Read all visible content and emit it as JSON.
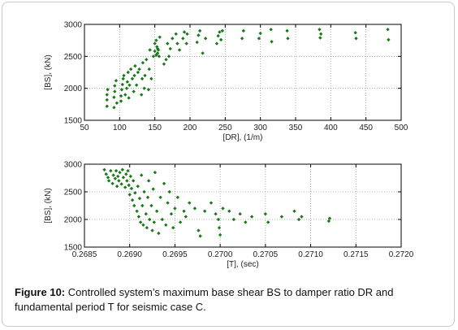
{
  "caption": {
    "label": "Figure 10:",
    "text": " Controlled system’s maximum base shear BS to damper ratio DR and fundamental period T for seismic case C."
  },
  "colors": {
    "marker": "#1a7a1a",
    "axis": "#000000",
    "grid": "#9a9a9a"
  },
  "chart_data": [
    {
      "type": "scatter",
      "xlabel": "[DR], (1/m)",
      "ylabel": "[BS], (kN)",
      "xlim": [
        50,
        500
      ],
      "ylim": [
        1500,
        3000
      ],
      "xticks": [
        "50",
        "100",
        "150",
        "200",
        "250",
        "300",
        "350",
        "400",
        "450",
        "500"
      ],
      "yticks": [
        "1500",
        "2000",
        "2500",
        "3000"
      ],
      "grid": true,
      "points": [
        [
          82,
          1720
        ],
        [
          82,
          1820
        ],
        [
          82,
          1900
        ],
        [
          83,
          1980
        ],
        [
          92,
          1700
        ],
        [
          92,
          1860
        ],
        [
          93,
          1950
        ],
        [
          93,
          2040
        ],
        [
          95,
          2120
        ],
        [
          96,
          1770
        ],
        [
          102,
          1800
        ],
        [
          102,
          1880
        ],
        [
          103,
          1980
        ],
        [
          104,
          2060
        ],
        [
          105,
          2150
        ],
        [
          106,
          2200
        ],
        [
          108,
          1900
        ],
        [
          110,
          2000
        ],
        [
          111,
          2100
        ],
        [
          112,
          2250
        ],
        [
          113,
          1850
        ],
        [
          114,
          2050
        ],
        [
          116,
          2300
        ],
        [
          118,
          2150
        ],
        [
          120,
          1950
        ],
        [
          121,
          2200
        ],
        [
          122,
          2350
        ],
        [
          124,
          2050
        ],
        [
          126,
          2250
        ],
        [
          128,
          2300
        ],
        [
          131,
          1900
        ],
        [
          132,
          2150
        ],
        [
          133,
          2400
        ],
        [
          135,
          2000
        ],
        [
          136,
          2200
        ],
        [
          138,
          2450
        ],
        [
          141,
          1980
        ],
        [
          142,
          2300
        ],
        [
          143,
          2600
        ],
        [
          145,
          2150
        ],
        [
          148,
          2500
        ],
        [
          150,
          2700
        ],
        [
          152,
          2750
        ],
        [
          153,
          2650
        ],
        [
          154,
          2550
        ],
        [
          155,
          2600
        ],
        [
          156,
          2500
        ],
        [
          157,
          2800
        ],
        [
          150,
          2580
        ],
        [
          152,
          2520
        ],
        [
          154,
          2620
        ],
        [
          163,
          2380
        ],
        [
          166,
          2450
        ],
        [
          170,
          2500
        ],
        [
          168,
          2700
        ],
        [
          172,
          2620
        ],
        [
          175,
          2780
        ],
        [
          180,
          2850
        ],
        [
          182,
          2700
        ],
        [
          185,
          2600
        ],
        [
          190,
          2780
        ],
        [
          192,
          2880
        ],
        [
          195,
          2700
        ],
        [
          196,
          2850
        ],
        [
          210,
          2720
        ],
        [
          212,
          2830
        ],
        [
          214,
          2900
        ],
        [
          218,
          2550
        ],
        [
          222,
          2780
        ],
        [
          238,
          2700
        ],
        [
          240,
          2820
        ],
        [
          242,
          2880
        ],
        [
          244,
          2760
        ],
        [
          246,
          2900
        ],
        [
          274,
          2780
        ],
        [
          276,
          2900
        ],
        [
          298,
          2780
        ],
        [
          300,
          2860
        ],
        [
          315,
          2920
        ],
        [
          316,
          2730
        ],
        [
          338,
          2900
        ],
        [
          339,
          2780
        ],
        [
          384,
          2920
        ],
        [
          385,
          2790
        ],
        [
          386,
          2850
        ],
        [
          435,
          2870
        ],
        [
          436,
          2780
        ],
        [
          481,
          2920
        ],
        [
          482,
          2760
        ]
      ]
    },
    {
      "type": "scatter",
      "xlabel": "[T], (sec)",
      "ylabel": "[BS], (kN)",
      "xlim": [
        0.2685,
        0.272
      ],
      "ylim": [
        1500,
        3000
      ],
      "xticks": [
        "0.2685",
        "0.2690",
        "0.2695",
        "0.2700",
        "0.2705",
        "0.2710",
        "0.2715",
        "0.2720"
      ],
      "yticks": [
        "1500",
        "2000",
        "2500",
        "3000"
      ],
      "grid": true,
      "points": [
        [
          0.26872,
          2900
        ],
        [
          0.26874,
          2820
        ],
        [
          0.26876,
          2760
        ],
        [
          0.26877,
          2700
        ],
        [
          0.26879,
          2880
        ],
        [
          0.26881,
          2650
        ],
        [
          0.26882,
          2800
        ],
        [
          0.26884,
          2740
        ],
        [
          0.26885,
          2880
        ],
        [
          0.26886,
          2600
        ],
        [
          0.26887,
          2780
        ],
        [
          0.26888,
          2700
        ],
        [
          0.26889,
          2850
        ],
        [
          0.26891,
          2640
        ],
        [
          0.26892,
          2900
        ],
        [
          0.26893,
          2760
        ],
        [
          0.26895,
          2580
        ],
        [
          0.26896,
          2820
        ],
        [
          0.26897,
          2700
        ],
        [
          0.26898,
          2880
        ],
        [
          0.26899,
          2620
        ],
        [
          0.269,
          2450
        ],
        [
          0.26901,
          2780
        ],
        [
          0.26902,
          2560
        ],
        [
          0.26903,
          2350
        ],
        [
          0.26904,
          2700
        ],
        [
          0.26905,
          2250
        ],
        [
          0.26906,
          2480
        ],
        [
          0.26908,
          2150
        ],
        [
          0.26909,
          2600
        ],
        [
          0.2691,
          2050
        ],
        [
          0.26911,
          2380
        ],
        [
          0.26912,
          1950
        ],
        [
          0.26913,
          2800
        ],
        [
          0.26914,
          2250
        ],
        [
          0.26915,
          1900
        ],
        [
          0.26916,
          2500
        ],
        [
          0.26918,
          2100
        ],
        [
          0.26919,
          1850
        ],
        [
          0.2692,
          2400
        ],
        [
          0.26921,
          2700
        ],
        [
          0.26922,
          2000
        ],
        [
          0.26924,
          2250
        ],
        [
          0.26925,
          1800
        ],
        [
          0.26926,
          2550
        ],
        [
          0.26927,
          1950
        ],
        [
          0.26928,
          2850
        ],
        [
          0.2693,
          2150
        ],
        [
          0.26932,
          1750
        ],
        [
          0.26934,
          2400
        ],
        [
          0.26936,
          2000
        ],
        [
          0.26938,
          2650
        ],
        [
          0.2694,
          1900
        ],
        [
          0.26942,
          2300
        ],
        [
          0.26944,
          2500
        ],
        [
          0.26946,
          2100
        ],
        [
          0.26948,
          1850
        ],
        [
          0.2695,
          2200
        ],
        [
          0.26953,
          2400
        ],
        [
          0.26956,
          1950
        ],
        [
          0.2696,
          2150
        ],
        [
          0.26962,
          2050
        ],
        [
          0.26966,
          2300
        ],
        [
          0.26972,
          2200
        ],
        [
          0.26976,
          1800
        ],
        [
          0.26978,
          1700
        ],
        [
          0.26983,
          2150
        ],
        [
          0.2699,
          2300
        ],
        [
          0.26995,
          2100
        ],
        [
          0.26998,
          2000
        ],
        [
          0.26999,
          1850
        ],
        [
          0.27,
          1720
        ],
        [
          0.27003,
          2200
        ],
        [
          0.2701,
          2150
        ],
        [
          0.27015,
          2000
        ],
        [
          0.27022,
          2100
        ],
        [
          0.27028,
          1950
        ],
        [
          0.27035,
          2050
        ],
        [
          0.2705,
          2100
        ],
        [
          0.27053,
          1950
        ],
        [
          0.27068,
          2050
        ],
        [
          0.27082,
          2150
        ],
        [
          0.27087,
          2000
        ],
        [
          0.2709,
          2050
        ],
        [
          0.2712,
          1970
        ],
        [
          0.27121,
          2020
        ]
      ]
    }
  ]
}
